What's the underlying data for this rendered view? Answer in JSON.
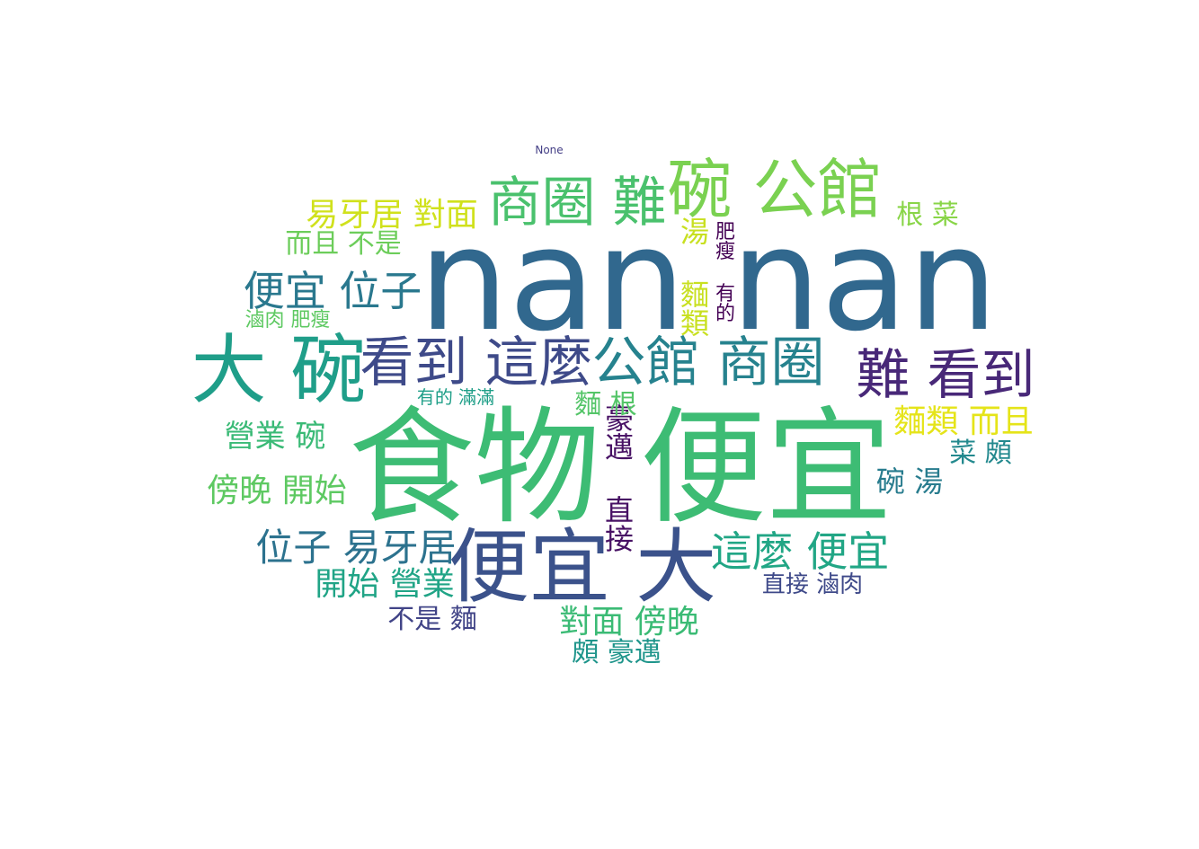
{
  "words": [
    {
      "text": "nan nan",
      "color": "#31688e",
      "weight": 1.0
    },
    {
      "text": "食物 便宜",
      "color": "#3dbc74",
      "weight": 0.95
    },
    {
      "text": "便宜 大",
      "color": "#3b528b",
      "weight": 0.62
    },
    {
      "text": "大 碗",
      "color": "#1f9e89",
      "weight": 0.55
    },
    {
      "text": "碗 公館",
      "color": "#7ad151",
      "weight": 0.5
    },
    {
      "text": "看到 這麼",
      "color": "#3e4a89",
      "weight": 0.43
    },
    {
      "text": "公館 商圈",
      "color": "#26828e",
      "weight": 0.43
    },
    {
      "text": "難 看到",
      "color": "#482878",
      "weight": 0.43
    },
    {
      "text": "商圈 難",
      "color": "#4ac16d",
      "weight": 0.43
    },
    {
      "text": "便宜 位子",
      "color": "#2a788e",
      "weight": 0.33
    },
    {
      "text": "這麼 便宜",
      "color": "#21a685",
      "weight": 0.33
    },
    {
      "text": "位子 易牙居",
      "color": "#2c728e",
      "weight": 0.3
    },
    {
      "text": "開始 營業",
      "color": "#20a486",
      "weight": 0.27
    },
    {
      "text": "傍晚 開始",
      "color": "#5ec962",
      "weight": 0.27
    },
    {
      "text": "對面 傍晚",
      "color": "#3bbb75",
      "weight": 0.27
    },
    {
      "text": "麵類 而且",
      "color": "#e5e419",
      "weight": 0.27
    },
    {
      "text": "易牙居 對面",
      "color": "#d0e11c",
      "weight": 0.27
    },
    {
      "text": "營業 碗",
      "color": "#3aba76",
      "weight": 0.25
    },
    {
      "text": "豪邁 直接",
      "color": "#471164",
      "weight": 0.23
    },
    {
      "text": "湯 麵類",
      "color": "#c8e020",
      "weight": 0.23
    },
    {
      "text": "碗 湯",
      "color": "#287c8e",
      "weight": 0.23
    },
    {
      "text": "而且 不是",
      "color": "#6ccd5a",
      "weight": 0.22
    },
    {
      "text": "根 菜",
      "color": "#89d548",
      "weight": 0.22
    },
    {
      "text": "菜 頗",
      "color": "#23898e",
      "weight": 0.22
    },
    {
      "text": "不是 麵",
      "color": "#414487",
      "weight": 0.22
    },
    {
      "text": "頗 豪邁",
      "color": "#1f958b",
      "weight": 0.22
    },
    {
      "text": "直接 滷肉",
      "color": "#3e4989",
      "weight": 0.2
    },
    {
      "text": "麵 根",
      "color": "#54c568",
      "weight": 0.2
    },
    {
      "text": "肥瘦 有的",
      "color": "#440154",
      "weight": 0.17
    },
    {
      "text": "滷肉 肥瘦",
      "color": "#5ec962",
      "weight": 0.17
    },
    {
      "text": "有的 滿滿",
      "color": "#1f9f88",
      "weight": 0.17
    },
    {
      "text": "None",
      "color": "#433e85",
      "weight": 0.05
    }
  ]
}
